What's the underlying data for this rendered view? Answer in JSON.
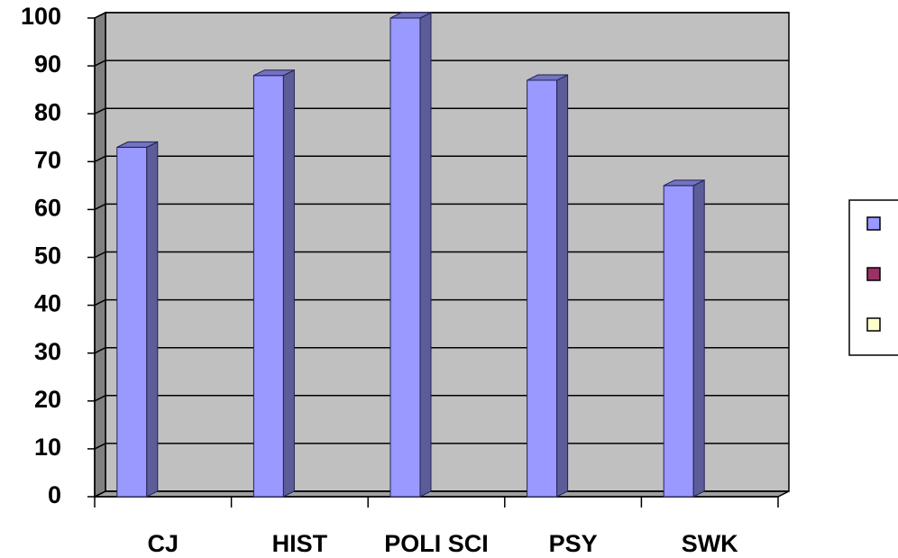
{
  "chart_data": {
    "type": "bar3d",
    "categories": [
      "CJ",
      "HIST",
      "POLI SCI",
      "PSY",
      "SWK"
    ],
    "series": [
      {
        "color": "#9999ff",
        "values": [
          73,
          88,
          100,
          87,
          65
        ]
      },
      {
        "color": "#993366",
        "values": [
          null,
          null,
          null,
          null,
          null
        ]
      },
      {
        "color": "#ffffcc",
        "values": [
          null,
          null,
          null,
          null,
          null
        ]
      }
    ],
    "ylim": [
      0,
      100
    ],
    "yticks": [
      0,
      10,
      20,
      30,
      40,
      50,
      60,
      70,
      80,
      90,
      100
    ],
    "grid": true,
    "legend": "right"
  }
}
